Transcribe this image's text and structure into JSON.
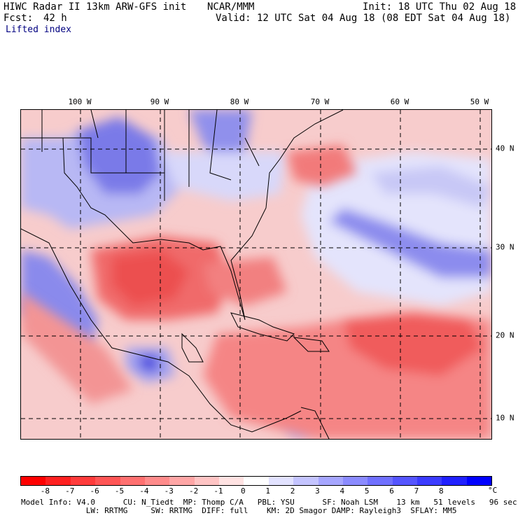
{
  "header": {
    "title": "HIWC Radar II 13km ARW-GFS init",
    "org": "NCAR/MMM",
    "init": "Init: 18 UTC Thu 02 Aug 18",
    "fcst_label": "Fcst:",
    "fcst_value": "42 h",
    "valid": "Valid: 12 UTC Sat 04 Aug 18 (08 EDT Sat 04 Aug 18)",
    "field": "Lifted index"
  },
  "map": {
    "lon_labels": [
      "100 W",
      "90 W",
      "80 W",
      "70 W",
      "60 W",
      "50 W"
    ],
    "lat_labels": [
      "40 N",
      "30 N",
      "20 N",
      "10 N"
    ],
    "colors": {
      "land_line": "#000000",
      "grid_line": "#000000"
    }
  },
  "colorbar": {
    "ticks": [
      "-8",
      "-7",
      "-6",
      "-5",
      "-4",
      "-3",
      "-2",
      "-1",
      "0",
      "1",
      "2",
      "3",
      "4",
      "5",
      "6",
      "7",
      "8"
    ],
    "unit": "°C",
    "colors": [
      "#ff0000",
      "#ff2020",
      "#ff3b3b",
      "#ff5555",
      "#ff7070",
      "#ff8b8b",
      "#ffa6a6",
      "#ffc4c4",
      "#ffe2e2",
      "#ffffff",
      "#e2e2ff",
      "#c4c4ff",
      "#a6a6ff",
      "#8b8bff",
      "#7070ff",
      "#5555ff",
      "#3b3bff",
      "#2020ff",
      "#0000ff"
    ]
  },
  "footer": {
    "line1": "Model Info: V4.0      CU: N_Tiedt  MP: Thomp C/A   PBL: YSU      SF: Noah LSM    13 km   51 levels   96 sec",
    "line2": "              LW: RRTMG     SW: RRTMG  DIFF: full    KM: 2D Smagor DAMP: Rayleigh3  SFLAY: MM5"
  }
}
